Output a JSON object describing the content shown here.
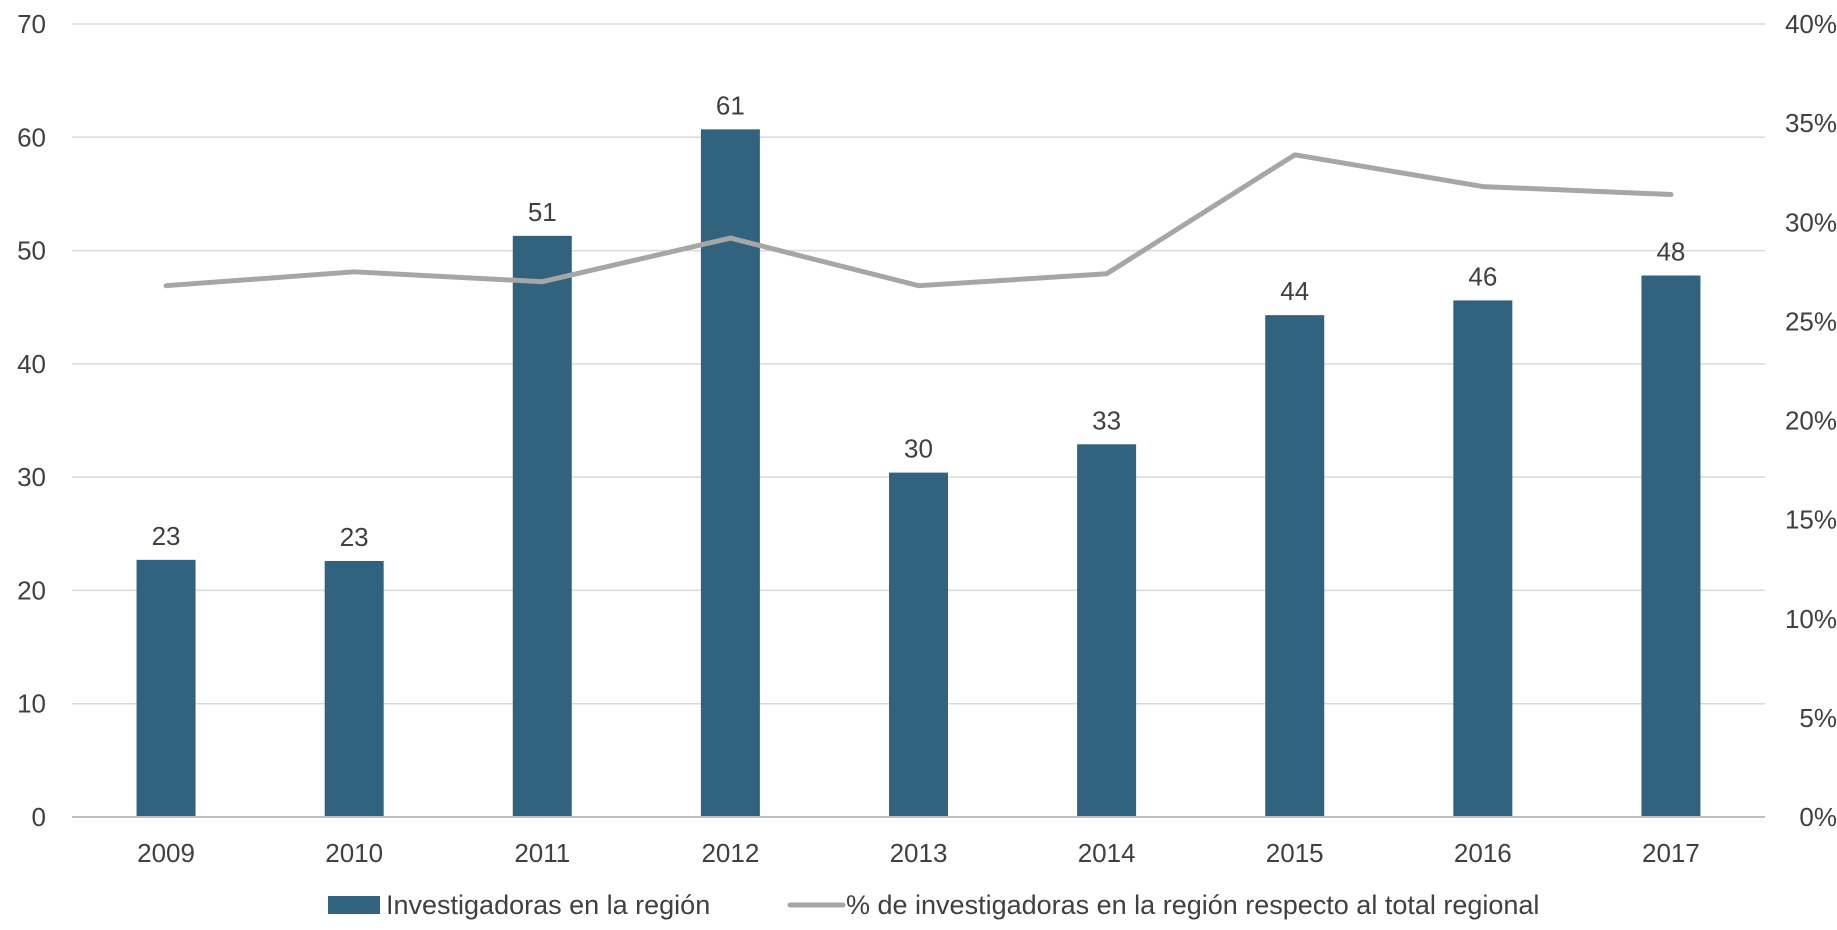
{
  "chart_data": {
    "type": "bar",
    "categories": [
      "2009",
      "2010",
      "2011",
      "2012",
      "2013",
      "2014",
      "2015",
      "2016",
      "2017"
    ],
    "series": [
      {
        "name": "Investigadoras en la región",
        "type": "bar",
        "axis": "left",
        "values": [
          22.7,
          22.6,
          51.3,
          60.7,
          30.4,
          32.9,
          44.3,
          45.6,
          47.8
        ],
        "labels": [
          "23",
          "23",
          "51",
          "61",
          "30",
          "33",
          "44",
          "46",
          "48"
        ],
        "color": "#31637f"
      },
      {
        "name": "% de investigadoras en la región respecto al total regional",
        "type": "line",
        "axis": "right",
        "values": [
          26.8,
          27.5,
          27.0,
          29.2,
          26.8,
          27.4,
          33.4,
          31.8,
          31.4
        ],
        "color": "#a6a6a6"
      }
    ],
    "y_left": {
      "ylim": [
        0,
        70
      ],
      "ticks": [
        0,
        10,
        20,
        30,
        40,
        50,
        60,
        70
      ],
      "tick_labels": [
        "0",
        "10",
        "20",
        "30",
        "40",
        "50",
        "60",
        "70"
      ]
    },
    "y_right": {
      "ylim": [
        0,
        40
      ],
      "ticks": [
        0,
        5,
        10,
        15,
        20,
        25,
        30,
        35,
        40
      ],
      "tick_labels": [
        "0%",
        "5%",
        "10%",
        "15%",
        "20%",
        "25%",
        "30%",
        "35%",
        "40%"
      ]
    },
    "grid": true,
    "legend": "bottom",
    "gridline_color": "#d9d9d9"
  }
}
